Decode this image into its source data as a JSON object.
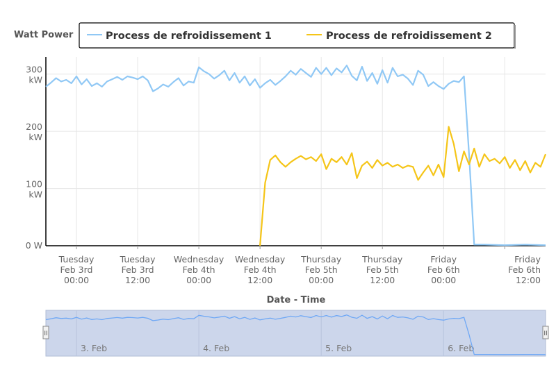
{
  "chart_data": {
    "type": "line",
    "title": "",
    "legend": {
      "title": "Watt Power",
      "placement": "top"
    },
    "xlabel": "Date - Time",
    "ylabel": "",
    "x_range": [
      "2015-02-02T18:00",
      "2015-02-06T20:00"
    ],
    "ylim": [
      0,
      330
    ],
    "grid": true,
    "y_ticks": [
      {
        "value": 0,
        "label": "0 W"
      },
      {
        "value": 100,
        "label": "100 kW"
      },
      {
        "value": 200,
        "label": "200 kW"
      },
      {
        "value": 300,
        "label": "300 kW"
      }
    ],
    "x_ticks": [
      {
        "value": "2015-02-03T00:00",
        "line1": "Tuesday",
        "line2": "Feb 3rd",
        "line3": "00:00"
      },
      {
        "value": "2015-02-03T12:00",
        "line1": "Tuesday",
        "line2": "Feb 3rd",
        "line3": "12:00"
      },
      {
        "value": "2015-02-04T00:00",
        "line1": "Wednesday",
        "line2": "Feb 4th",
        "line3": "00:00"
      },
      {
        "value": "2015-02-04T12:00",
        "line1": "Wednesday",
        "line2": "Feb 4th",
        "line3": "12:00"
      },
      {
        "value": "2015-02-05T00:00",
        "line1": "Thursday",
        "line2": "Feb 5th",
        "line3": "00:00"
      },
      {
        "value": "2015-02-05T12:00",
        "line1": "Thursday",
        "line2": "Feb 5th",
        "line3": "12:00"
      },
      {
        "value": "2015-02-06T00:00",
        "line1": "Friday",
        "line2": "Feb 6th",
        "line3": "00:00"
      },
      {
        "value": "2015-02-06T12:00",
        "line1": "Friday",
        "line2": "Feb 6th",
        "line3": "12:00"
      }
    ],
    "series": [
      {
        "name": "Process de refroidissement 1",
        "color": "#90c8f5",
        "points": [
          [
            "2015-02-02T18:00",
            278
          ],
          [
            "2015-02-02T19:00",
            285
          ],
          [
            "2015-02-02T20:00",
            293
          ],
          [
            "2015-02-02T21:00",
            287
          ],
          [
            "2015-02-02T22:00",
            290
          ],
          [
            "2015-02-02T23:00",
            284
          ],
          [
            "2015-02-03T00:00",
            296
          ],
          [
            "2015-02-03T01:00",
            282
          ],
          [
            "2015-02-03T02:00",
            291
          ],
          [
            "2015-02-03T03:00",
            279
          ],
          [
            "2015-02-03T04:00",
            284
          ],
          [
            "2015-02-03T05:00",
            278
          ],
          [
            "2015-02-03T06:00",
            287
          ],
          [
            "2015-02-03T07:00",
            291
          ],
          [
            "2015-02-03T08:00",
            295
          ],
          [
            "2015-02-03T09:00",
            290
          ],
          [
            "2015-02-03T10:00",
            296
          ],
          [
            "2015-02-03T11:00",
            294
          ],
          [
            "2015-02-03T12:00",
            291
          ],
          [
            "2015-02-03T13:00",
            296
          ],
          [
            "2015-02-03T14:00",
            289
          ],
          [
            "2015-02-03T15:00",
            270
          ],
          [
            "2015-02-03T16:00",
            275
          ],
          [
            "2015-02-03T17:00",
            282
          ],
          [
            "2015-02-03T18:00",
            278
          ],
          [
            "2015-02-03T19:00",
            286
          ],
          [
            "2015-02-03T20:00",
            293
          ],
          [
            "2015-02-03T21:00",
            280
          ],
          [
            "2015-02-03T22:00",
            287
          ],
          [
            "2015-02-03T23:00",
            285
          ],
          [
            "2015-02-04T00:00",
            312
          ],
          [
            "2015-02-04T01:00",
            305
          ],
          [
            "2015-02-04T02:00",
            300
          ],
          [
            "2015-02-04T03:00",
            292
          ],
          [
            "2015-02-04T04:00",
            298
          ],
          [
            "2015-02-04T05:00",
            306
          ],
          [
            "2015-02-04T06:00",
            289
          ],
          [
            "2015-02-04T07:00",
            302
          ],
          [
            "2015-02-04T08:00",
            285
          ],
          [
            "2015-02-04T09:00",
            296
          ],
          [
            "2015-02-04T10:00",
            280
          ],
          [
            "2015-02-04T11:00",
            291
          ],
          [
            "2015-02-04T12:00",
            276
          ],
          [
            "2015-02-04T13:00",
            284
          ],
          [
            "2015-02-04T14:00",
            290
          ],
          [
            "2015-02-04T15:00",
            281
          ],
          [
            "2015-02-04T16:00",
            288
          ],
          [
            "2015-02-04T17:00",
            296
          ],
          [
            "2015-02-04T18:00",
            306
          ],
          [
            "2015-02-04T19:00",
            299
          ],
          [
            "2015-02-04T20:00",
            309
          ],
          [
            "2015-02-04T21:00",
            302
          ],
          [
            "2015-02-04T22:00",
            295
          ],
          [
            "2015-02-04T23:00",
            311
          ],
          [
            "2015-02-05T00:00",
            300
          ],
          [
            "2015-02-05T01:00",
            311
          ],
          [
            "2015-02-05T02:00",
            298
          ],
          [
            "2015-02-05T03:00",
            310
          ],
          [
            "2015-02-05T04:00",
            303
          ],
          [
            "2015-02-05T05:00",
            315
          ],
          [
            "2015-02-05T06:00",
            297
          ],
          [
            "2015-02-05T07:00",
            289
          ],
          [
            "2015-02-05T08:00",
            313
          ],
          [
            "2015-02-05T09:00",
            288
          ],
          [
            "2015-02-05T10:00",
            302
          ],
          [
            "2015-02-05T11:00",
            283
          ],
          [
            "2015-02-05T12:00",
            307
          ],
          [
            "2015-02-05T13:00",
            285
          ],
          [
            "2015-02-05T14:00",
            311
          ],
          [
            "2015-02-05T15:00",
            296
          ],
          [
            "2015-02-05T16:00",
            299
          ],
          [
            "2015-02-05T17:00",
            292
          ],
          [
            "2015-02-05T18:00",
            281
          ],
          [
            "2015-02-05T19:00",
            306
          ],
          [
            "2015-02-05T20:00",
            299
          ],
          [
            "2015-02-05T21:00",
            279
          ],
          [
            "2015-02-05T22:00",
            286
          ],
          [
            "2015-02-05T23:00",
            279
          ],
          [
            "2015-02-06T00:00",
            274
          ],
          [
            "2015-02-06T01:00",
            283
          ],
          [
            "2015-02-06T02:00",
            288
          ],
          [
            "2015-02-06T03:00",
            286
          ],
          [
            "2015-02-06T04:00",
            296
          ],
          [
            "2015-02-06T05:00",
            160
          ],
          [
            "2015-02-06T06:00",
            2
          ],
          [
            "2015-02-06T08:00",
            2
          ],
          [
            "2015-02-06T12:00",
            1
          ],
          [
            "2015-02-06T16:00",
            2
          ],
          [
            "2015-02-06T20:00",
            1
          ]
        ]
      },
      {
        "name": "Process de refroidissement 2",
        "color": "#f5c518",
        "points": [
          [
            "2015-02-04T12:00",
            0
          ],
          [
            "2015-02-04T13:00",
            110
          ],
          [
            "2015-02-04T14:00",
            150
          ],
          [
            "2015-02-04T15:00",
            158
          ],
          [
            "2015-02-04T16:00",
            146
          ],
          [
            "2015-02-04T17:00",
            138
          ],
          [
            "2015-02-04T18:00",
            146
          ],
          [
            "2015-02-04T19:00",
            152
          ],
          [
            "2015-02-04T20:00",
            157
          ],
          [
            "2015-02-04T21:00",
            151
          ],
          [
            "2015-02-04T22:00",
            155
          ],
          [
            "2015-02-04T23:00",
            148
          ],
          [
            "2015-02-05T00:00",
            160
          ],
          [
            "2015-02-05T01:00",
            134
          ],
          [
            "2015-02-05T02:00",
            152
          ],
          [
            "2015-02-05T03:00",
            146
          ],
          [
            "2015-02-05T04:00",
            155
          ],
          [
            "2015-02-05T05:00",
            142
          ],
          [
            "2015-02-05T06:00",
            162
          ],
          [
            "2015-02-05T07:00",
            118
          ],
          [
            "2015-02-05T08:00",
            140
          ],
          [
            "2015-02-05T09:00",
            147
          ],
          [
            "2015-02-05T10:00",
            136
          ],
          [
            "2015-02-05T11:00",
            150
          ],
          [
            "2015-02-05T12:00",
            140
          ],
          [
            "2015-02-05T13:00",
            145
          ],
          [
            "2015-02-05T14:00",
            138
          ],
          [
            "2015-02-05T15:00",
            142
          ],
          [
            "2015-02-05T16:00",
            136
          ],
          [
            "2015-02-05T17:00",
            140
          ],
          [
            "2015-02-05T18:00",
            138
          ],
          [
            "2015-02-05T19:00",
            115
          ],
          [
            "2015-02-05T20:00",
            128
          ],
          [
            "2015-02-05T21:00",
            140
          ],
          [
            "2015-02-05T22:00",
            123
          ],
          [
            "2015-02-05T23:00",
            142
          ],
          [
            "2015-02-06T00:00",
            120
          ],
          [
            "2015-02-06T01:00",
            208
          ],
          [
            "2015-02-06T02:00",
            178
          ],
          [
            "2015-02-06T03:00",
            130
          ],
          [
            "2015-02-06T04:00",
            165
          ],
          [
            "2015-02-06T05:00",
            142
          ],
          [
            "2015-02-06T06:00",
            170
          ],
          [
            "2015-02-06T07:00",
            138
          ],
          [
            "2015-02-06T08:00",
            160
          ],
          [
            "2015-02-06T09:00",
            148
          ],
          [
            "2015-02-06T10:00",
            152
          ],
          [
            "2015-02-06T11:00",
            144
          ],
          [
            "2015-02-06T12:00",
            155
          ],
          [
            "2015-02-06T13:00",
            136
          ],
          [
            "2015-02-06T14:00",
            150
          ],
          [
            "2015-02-06T15:00",
            132
          ],
          [
            "2015-02-06T16:00",
            148
          ],
          [
            "2015-02-06T17:00",
            128
          ],
          [
            "2015-02-06T18:00",
            145
          ],
          [
            "2015-02-06T19:00",
            138
          ],
          [
            "2015-02-06T20:00",
            160
          ]
        ]
      }
    ],
    "navigator": {
      "labels": [
        {
          "value": "2015-02-03T00:00",
          "text": "3. Feb"
        },
        {
          "value": "2015-02-04T00:00",
          "text": "4. Feb"
        },
        {
          "value": "2015-02-05T00:00",
          "text": "5. Feb"
        },
        {
          "value": "2015-02-06T00:00",
          "text": "6. Feb"
        }
      ],
      "handle_left_label": "II",
      "handle_right_label": "II",
      "fill_color": "#ccd6eb",
      "line_color": "#6fa8f5"
    }
  }
}
